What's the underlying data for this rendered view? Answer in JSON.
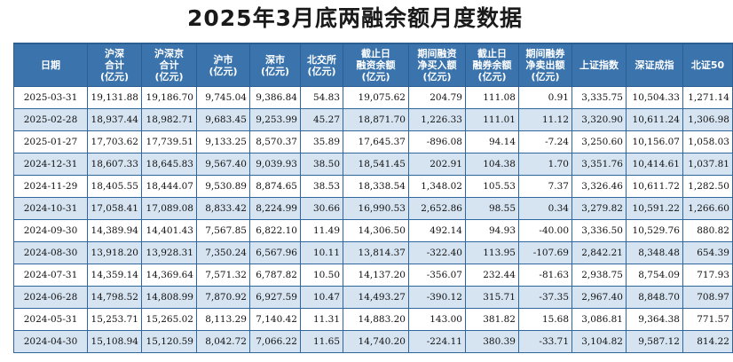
{
  "title": "2025年3月底两融余额月度数据",
  "columns": [
    [
      "日期"
    ],
    [
      "沪深",
      "合计",
      "(亿元)"
    ],
    [
      "沪深京",
      "合计",
      "(亿元)"
    ],
    [
      "沪市",
      "(亿元)"
    ],
    [
      "深市",
      "(亿元)"
    ],
    [
      "北交所",
      "(亿元)"
    ],
    [
      "截止日",
      "融资余额",
      "(亿元)"
    ],
    [
      "期间融资",
      "净买入额",
      "(亿元)"
    ],
    [
      "截止日",
      "融券余额",
      "(亿元)"
    ],
    [
      "期间融券",
      "净卖出额",
      "(亿元)"
    ],
    [
      "上证指数"
    ],
    [
      "深证成指"
    ],
    [
      "北证50"
    ]
  ],
  "rows": [
    [
      "2025-03-31",
      "19,131.88",
      "19,186.70",
      "9,745.04",
      "9,386.84",
      "54.83",
      "19,075.62",
      "204.79",
      "111.08",
      "0.91",
      "3,335.75",
      "10,504.33",
      "1,271.14"
    ],
    [
      "2025-02-28",
      "18,937.44",
      "18,982.71",
      "9,683.45",
      "9,253.99",
      "45.27",
      "18,871.70",
      "1,226.33",
      "111.01",
      "11.12",
      "3,320.90",
      "10,611.24",
      "1,306.98"
    ],
    [
      "2025-01-27",
      "17,703.62",
      "17,739.51",
      "9,133.25",
      "8,570.37",
      "35.89",
      "17,645.37",
      "-896.08",
      "94.14",
      "-7.24",
      "3,250.60",
      "10,156.07",
      "1,058.03"
    ],
    [
      "2024-12-31",
      "18,607.33",
      "18,645.83",
      "9,567.40",
      "9,039.93",
      "38.50",
      "18,541.45",
      "202.91",
      "104.38",
      "1.70",
      "3,351.76",
      "10,414.61",
      "1,037.81"
    ],
    [
      "2024-11-29",
      "18,405.55",
      "18,444.07",
      "9,530.89",
      "8,874.65",
      "38.53",
      "18,338.54",
      "1,348.02",
      "105.53",
      "7.37",
      "3,326.46",
      "10,611.72",
      "1,282.50"
    ],
    [
      "2024-10-31",
      "17,058.41",
      "17,089.08",
      "8,833.42",
      "8,224.99",
      "30.66",
      "16,990.53",
      "2,652.86",
      "98.55",
      "0.34",
      "3,279.82",
      "10,591.22",
      "1,266.60"
    ],
    [
      "2024-09-30",
      "14,389.94",
      "14,401.43",
      "7,567.85",
      "6,822.10",
      "11.49",
      "14,306.50",
      "492.14",
      "94.93",
      "-40.00",
      "3,336.50",
      "10,529.76",
      "880.82"
    ],
    [
      "2024-08-30",
      "13,918.20",
      "13,928.31",
      "7,350.24",
      "6,567.96",
      "10.11",
      "13,814.37",
      "-322.40",
      "113.95",
      "-107.69",
      "2,842.21",
      "8,348.48",
      "654.39"
    ],
    [
      "2024-07-31",
      "14,359.14",
      "14,369.64",
      "7,571.32",
      "6,787.82",
      "10.50",
      "14,137.20",
      "-356.07",
      "232.44",
      "-81.63",
      "2,938.75",
      "8,754.09",
      "717.93"
    ],
    [
      "2024-06-28",
      "14,798.52",
      "14,808.99",
      "7,870.92",
      "6,927.59",
      "10.47",
      "14,493.27",
      "-390.12",
      "315.71",
      "-37.35",
      "2,967.40",
      "8,848.70",
      "708.97"
    ],
    [
      "2024-05-31",
      "15,253.71",
      "15,265.02",
      "8,113.29",
      "7,140.42",
      "11.31",
      "14,883.20",
      "143.00",
      "381.82",
      "15.68",
      "3,086.81",
      "9,364.38",
      "771.57"
    ],
    [
      "2024-04-30",
      "15,108.94",
      "15,120.59",
      "8,042.72",
      "7,066.22",
      "11.65",
      "14,740.20",
      "-224.11",
      "380.39",
      "-33.71",
      "3,104.82",
      "9,587.12",
      "814.22"
    ]
  ]
}
